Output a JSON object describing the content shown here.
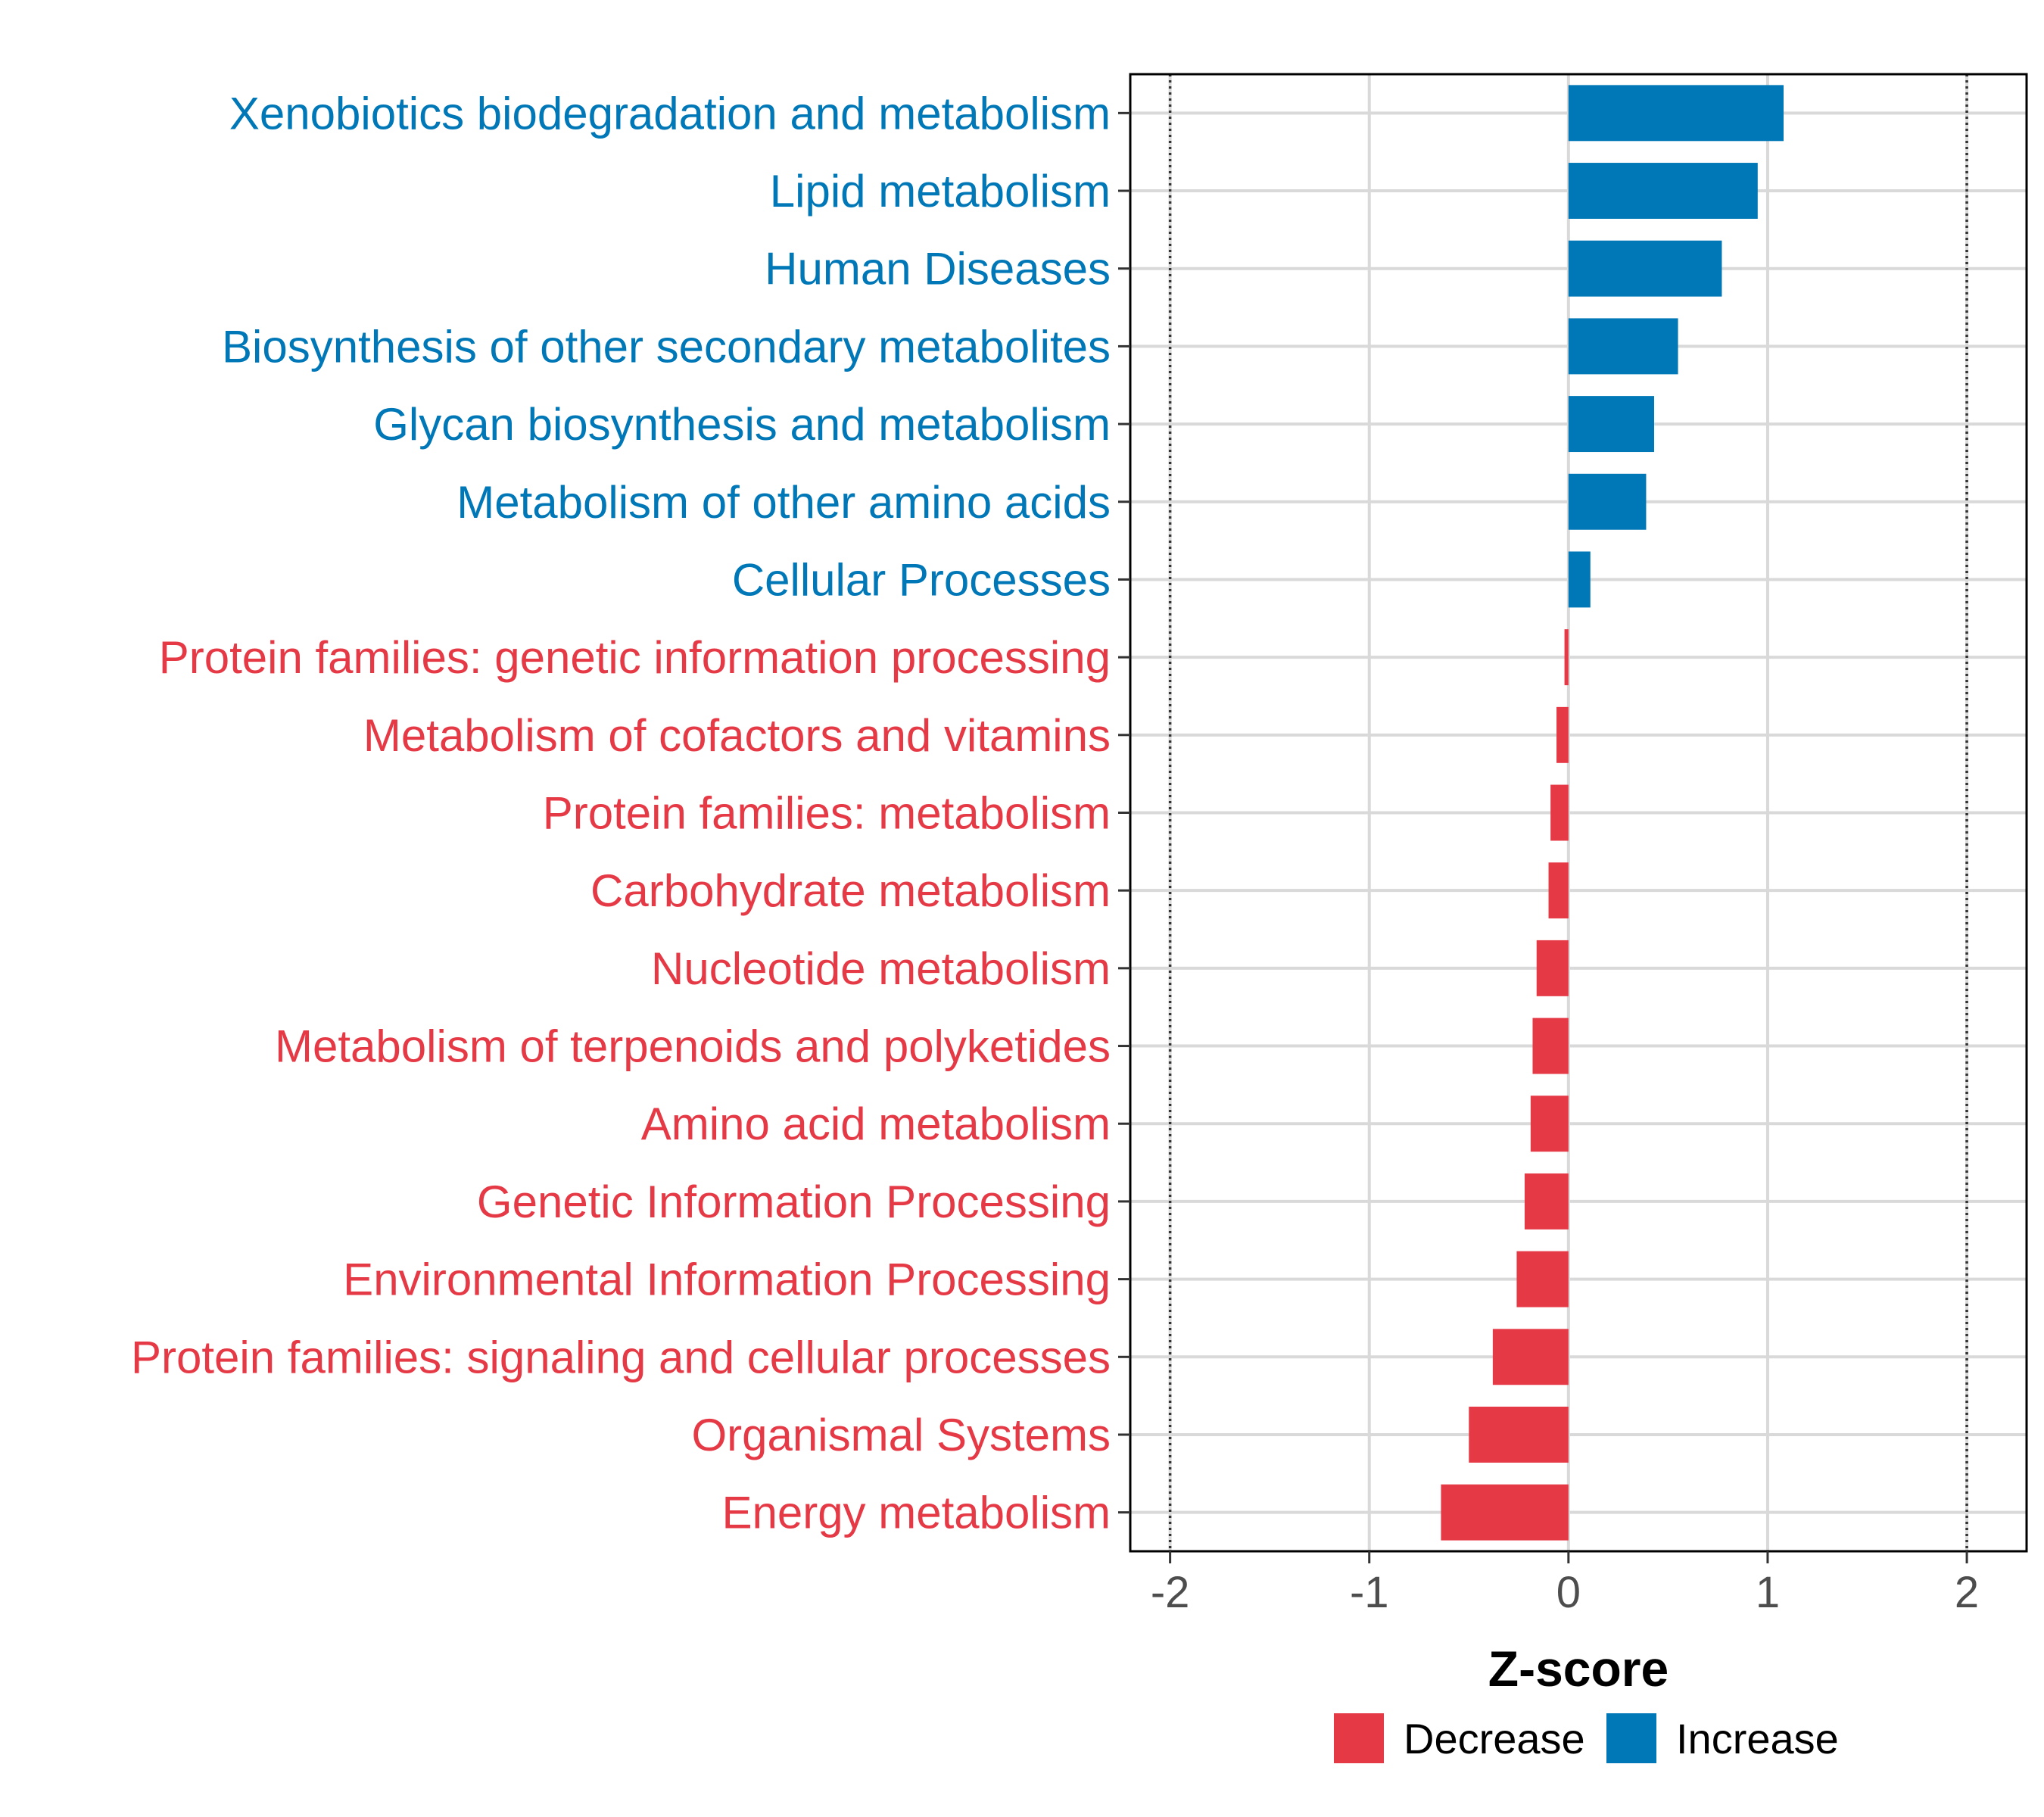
{
  "chart_data": {
    "type": "bar",
    "orientation": "horizontal",
    "title": "",
    "xlabel": "Z-score",
    "ylabel": "",
    "xlim": [
      -2.2,
      2.3
    ],
    "xticks": [
      -2,
      -1,
      0,
      1,
      2
    ],
    "xtick_labels": [
      "-2",
      "-1",
      "0",
      "1",
      "2"
    ],
    "reference_lines": [
      -2,
      2
    ],
    "grid": true,
    "legend_position": "bottom",
    "colors": {
      "Decrease": "#E63946",
      "Increase": "#0077B6"
    },
    "legend": [
      {
        "label": "Decrease",
        "color": "#E63946"
      },
      {
        "label": "Increase",
        "color": "#0077B6"
      }
    ],
    "categories": [
      "Xenobiotics biodegradation and metabolism",
      "Lipid metabolism",
      "Human Diseases",
      "Biosynthesis of other secondary metabolites",
      "Glycan biosynthesis and metabolism",
      "Metabolism of other amino acids",
      "Cellular Processes",
      "Protein families: genetic information processing",
      "Metabolism of cofactors and vitamins",
      "Protein families: metabolism",
      "Carbohydrate metabolism",
      "Nucleotide metabolism",
      "Metabolism of terpenoids and polyketides",
      "Amino acid metabolism",
      "Genetic Information Processing",
      "Environmental Information Processing",
      "Protein families: signaling and cellular processes",
      "Organismal Systems",
      "Energy metabolism"
    ],
    "values": [
      1.08,
      0.95,
      0.77,
      0.55,
      0.43,
      0.39,
      0.11,
      -0.02,
      -0.06,
      -0.09,
      -0.1,
      -0.16,
      -0.18,
      -0.19,
      -0.22,
      -0.26,
      -0.38,
      -0.5,
      -0.64
    ],
    "groups": [
      "Increase",
      "Increase",
      "Increase",
      "Increase",
      "Increase",
      "Increase",
      "Increase",
      "Decrease",
      "Decrease",
      "Decrease",
      "Decrease",
      "Decrease",
      "Decrease",
      "Decrease",
      "Decrease",
      "Decrease",
      "Decrease",
      "Decrease",
      "Decrease"
    ]
  }
}
